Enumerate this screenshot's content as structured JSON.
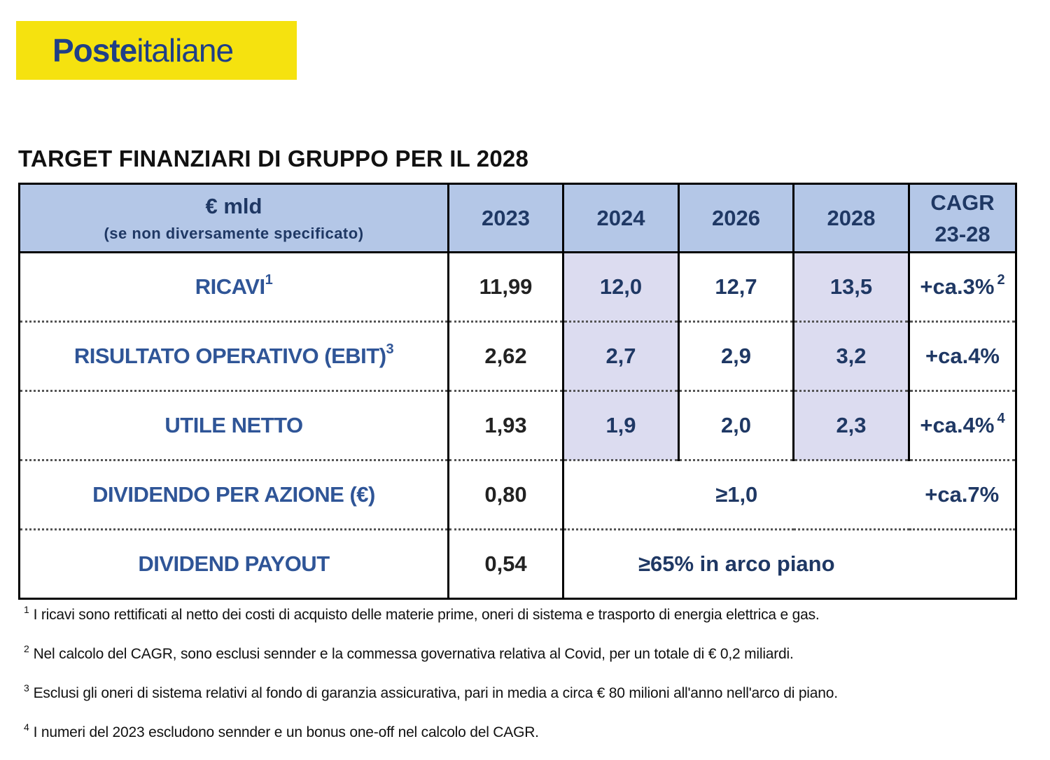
{
  "logo": {
    "bold": "Poste",
    "light": "italiane"
  },
  "title": "TARGET FINANZIARI DI GRUPPO PER IL 2028",
  "table": {
    "header": {
      "label_main": "€ mld",
      "label_sub": "(se non diversamente specificato)",
      "years": [
        "2023",
        "2024",
        "2026",
        "2028"
      ],
      "cagr_line1": "CAGR",
      "cagr_line2": "23-28"
    },
    "rows": [
      {
        "label": "RICAVI",
        "sup": "1",
        "v2023": "11,99",
        "v2024": "12,0",
        "v2026": "12,7",
        "v2028": "13,5",
        "cagr": "+ca.3%",
        "cagr_sup": "2"
      },
      {
        "label": "RISULTATO OPERATIVO (EBIT)",
        "sup": "3",
        "v2023": "2,62",
        "v2024": "2,7",
        "v2026": "2,9",
        "v2028": "3,2",
        "cagr": "+ca.4%",
        "cagr_sup": ""
      },
      {
        "label": "UTILE NETTO",
        "sup": "",
        "v2023": "1,93",
        "v2024": "1,9",
        "v2026": "2,0",
        "v2028": "2,3",
        "cagr": "+ca.4%",
        "cagr_sup": "4"
      }
    ],
    "dividend": {
      "label": "DIVIDENDO PER AZIONE (€)",
      "v2023": "0,80",
      "target": "≥1,0",
      "cagr": "+ca.7%"
    },
    "payout": {
      "label": "DIVIDEND PAYOUT",
      "v2023": "0,54",
      "target": "≥65% in arco piano"
    }
  },
  "footnotes": [
    {
      "num": "1",
      "text": "I ricavi sono rettificati al netto dei costi di acquisto delle materie prime, oneri di sistema e trasporto di energia elettrica e gas."
    },
    {
      "num": "2",
      "text": "Nel calcolo del CAGR, sono esclusi sennder e la commessa governativa relativa al Covid, per un totale di € 0,2 miliardi."
    },
    {
      "num": "3",
      "text": "Esclusi gli oneri di sistema relativi al fondo di garanzia assicurativa, pari in media a circa € 80 milioni all'anno nell'arco di piano."
    },
    {
      "num": "4",
      "text": "I numeri del 2023 escludono sennder e un bonus one-off nel calcolo del CAGR."
    }
  ]
}
